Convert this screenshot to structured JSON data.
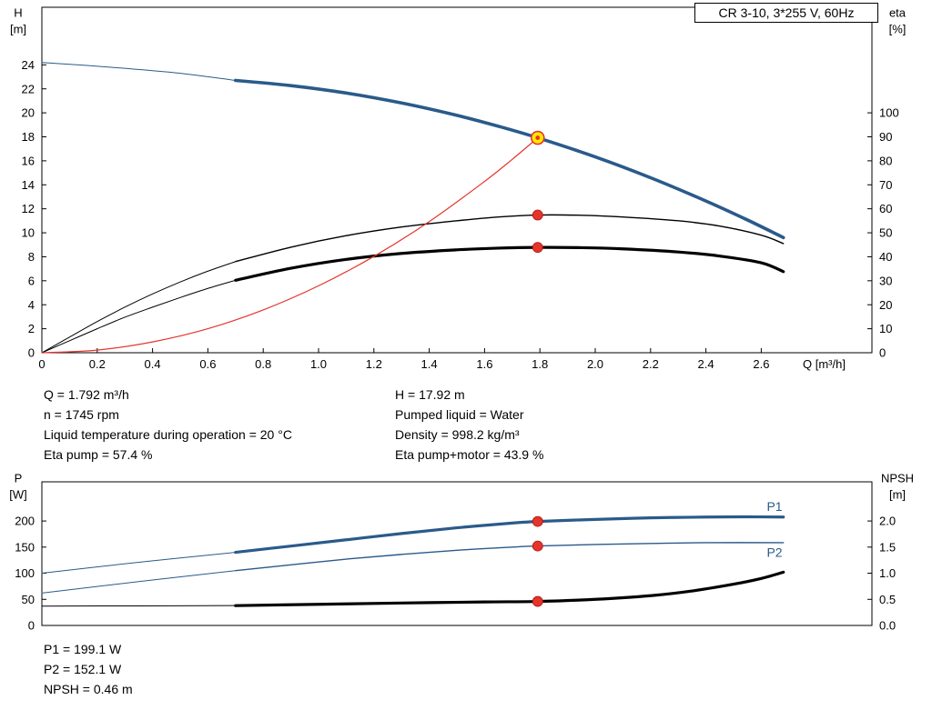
{
  "meta": {
    "title_box": "CR 3-10, 3*255 V, 60Hz"
  },
  "colors": {
    "curve_blue": "#2a5a8a",
    "curve_black": "#000000",
    "curve_red": "#e5352b",
    "duty_yellow": "#ffe800",
    "dot_red": "#e5352b",
    "axis": "#000000"
  },
  "info_top": {
    "left": [
      "Q = 1.792 m³/h",
      "n = 1745 rpm",
      "Liquid temperature during operation = 20 °C",
      "Eta pump = 57.4 %"
    ],
    "right": [
      "H = 17.92 m",
      "Pumped liquid = Water",
      "Density = 998.2 kg/m³",
      "Eta pump+motor = 43.9 %"
    ]
  },
  "info_bottom": [
    "P1 = 199.1 W",
    "P2 = 152.1 W",
    "NPSH = 0.46 m"
  ],
  "chart_data": [
    {
      "id": "head-efficiency",
      "type": "line",
      "grid": false,
      "legend": "none",
      "x_axis": {
        "min": 0,
        "max": 3.0,
        "label": "Q [m³/h]",
        "ticks": [
          "0",
          "0.2",
          "0.4",
          "0.6",
          "0.8",
          "1.0",
          "1.2",
          "1.4",
          "1.6",
          "1.8",
          "2.0",
          "2.2",
          "2.4",
          "2.6"
        ]
      },
      "y_left": {
        "min": 0,
        "max": 28.8,
        "title": [
          "H",
          "[m]"
        ],
        "ticks": [
          "0",
          "2",
          "4",
          "6",
          "8",
          "10",
          "12",
          "14",
          "16",
          "18",
          "20",
          "22",
          "24"
        ]
      },
      "y_right": {
        "min": 0,
        "max": 144,
        "title": [
          "eta",
          "[%]"
        ],
        "ticks": [
          "0",
          "10",
          "20",
          "30",
          "40",
          "50",
          "60",
          "70",
          "80",
          "90",
          "100"
        ]
      },
      "series": [
        {
          "name": "head-lead",
          "axis": "left",
          "color": "#2a5a8a",
          "width": 1,
          "points": [
            [
              0,
              24.2
            ],
            [
              0.25,
              23.8
            ],
            [
              0.5,
              23.3
            ],
            [
              0.7,
              22.7
            ]
          ]
        },
        {
          "name": "head",
          "axis": "left",
          "color": "#2a5a8a",
          "width": 3.6,
          "points": [
            [
              0.7,
              22.7
            ],
            [
              0.9,
              22.27
            ],
            [
              1.1,
              21.65
            ],
            [
              1.3,
              20.82
            ],
            [
              1.5,
              19.79
            ],
            [
              1.65,
              18.88
            ],
            [
              1.792,
              17.92
            ],
            [
              2.0,
              16.33
            ],
            [
              2.2,
              14.59
            ],
            [
              2.4,
              12.65
            ],
            [
              2.55,
              11.07
            ],
            [
              2.68,
              9.6
            ]
          ]
        },
        {
          "name": "eta-pump-lead",
          "axis": "right",
          "color": "#000000",
          "width": 1,
          "points": [
            [
              0,
              0
            ],
            [
              0.1,
              6.5
            ],
            [
              0.2,
              13
            ],
            [
              0.3,
              19
            ],
            [
              0.4,
              24.5
            ],
            [
              0.5,
              29.5
            ],
            [
              0.6,
              34
            ],
            [
              0.7,
              38
            ]
          ]
        },
        {
          "name": "eta-pump",
          "axis": "right",
          "color": "#000000",
          "width": 1.4,
          "points": [
            [
              0.7,
              38
            ],
            [
              0.9,
              44
            ],
            [
              1.1,
              48.8
            ],
            [
              1.3,
              52.4
            ],
            [
              1.5,
              55
            ],
            [
              1.65,
              56.6
            ],
            [
              1.792,
              57.4
            ],
            [
              1.95,
              57.3
            ],
            [
              2.1,
              56.6
            ],
            [
              2.3,
              55
            ],
            [
              2.45,
              52.8
            ],
            [
              2.6,
              49
            ],
            [
              2.68,
              45.5
            ]
          ]
        },
        {
          "name": "eta-pump-motor-lead",
          "axis": "right",
          "color": "#000000",
          "width": 1,
          "points": [
            [
              0,
              0
            ],
            [
              0.1,
              5
            ],
            [
              0.2,
              10
            ],
            [
              0.3,
              14.8
            ],
            [
              0.4,
              19
            ],
            [
              0.5,
              23
            ],
            [
              0.6,
              26.8
            ],
            [
              0.7,
              30.2
            ]
          ]
        },
        {
          "name": "eta-pump-motor",
          "axis": "right",
          "color": "#000000",
          "width": 3.2,
          "points": [
            [
              0.7,
              30.2
            ],
            [
              0.9,
              35.2
            ],
            [
              1.1,
              38.9
            ],
            [
              1.3,
              41.4
            ],
            [
              1.5,
              42.9
            ],
            [
              1.65,
              43.6
            ],
            [
              1.792,
              43.9
            ],
            [
              1.95,
              43.8
            ],
            [
              2.1,
              43.3
            ],
            [
              2.3,
              42
            ],
            [
              2.45,
              40.3
            ],
            [
              2.6,
              37.5
            ],
            [
              2.68,
              33.8
            ]
          ]
        },
        {
          "name": "system-curve",
          "axis": "left",
          "color": "#e5352b",
          "width": 1.2,
          "points": [
            [
              0,
              0
            ],
            [
              0.2,
              0.22
            ],
            [
              0.4,
              0.9
            ],
            [
              0.6,
              2.0
            ],
            [
              0.8,
              3.57
            ],
            [
              1.0,
              5.58
            ],
            [
              1.2,
              8.03
            ],
            [
              1.4,
              10.93
            ],
            [
              1.6,
              14.28
            ],
            [
              1.7,
              16.12
            ],
            [
              1.792,
              17.92
            ]
          ]
        }
      ],
      "markers": [
        {
          "type": "duty",
          "axis": "left",
          "x": 1.792,
          "y": 17.92
        },
        {
          "type": "dot",
          "axis": "right",
          "x": 1.792,
          "y": 57.4
        },
        {
          "type": "dot",
          "axis": "right",
          "x": 1.792,
          "y": 43.9
        }
      ],
      "annotations": []
    },
    {
      "id": "power-npsh",
      "type": "line",
      "grid": false,
      "legend": "none",
      "x_axis": {
        "min": 0,
        "max": 3.0,
        "label": "",
        "ticks": []
      },
      "y_left": {
        "min": 0,
        "max": 275,
        "title": [
          "P",
          "[W]"
        ],
        "ticks": [
          "0",
          "50",
          "100",
          "150",
          "200"
        ]
      },
      "y_right": {
        "min": 0,
        "max": 2.75,
        "title": [
          "NPSH",
          "[m]"
        ],
        "ticks": [
          "0.0",
          "0.5",
          "1.0",
          "1.5",
          "2.0"
        ]
      },
      "series": [
        {
          "name": "p1-lead",
          "axis": "left",
          "color": "#2a5a8a",
          "width": 1,
          "points": [
            [
              0,
              100
            ],
            [
              0.35,
              121
            ],
            [
              0.7,
              140
            ]
          ]
        },
        {
          "name": "p1",
          "axis": "left",
          "color": "#2a5a8a",
          "width": 3.2,
          "points": [
            [
              0.7,
              140
            ],
            [
              0.9,
              152
            ],
            [
              1.1,
              164
            ],
            [
              1.3,
              176
            ],
            [
              1.5,
              187
            ],
            [
              1.7,
              196
            ],
            [
              1.792,
              199.1
            ],
            [
              2.0,
              203
            ],
            [
              2.2,
              206
            ],
            [
              2.4,
              207.5
            ],
            [
              2.55,
              208
            ],
            [
              2.68,
              207.5
            ]
          ]
        },
        {
          "name": "p2-lead",
          "axis": "left",
          "color": "#2a5a8a",
          "width": 1,
          "points": [
            [
              0,
              62
            ],
            [
              0.35,
              84
            ],
            [
              0.7,
              105
            ]
          ]
        },
        {
          "name": "p2",
          "axis": "left",
          "color": "#2a5a8a",
          "width": 1.4,
          "points": [
            [
              0.7,
              105
            ],
            [
              0.9,
              116
            ],
            [
              1.1,
              127
            ],
            [
              1.3,
              136
            ],
            [
              1.5,
              144
            ],
            [
              1.7,
              150
            ],
            [
              1.792,
              152.1
            ],
            [
              2.0,
              155
            ],
            [
              2.2,
              157
            ],
            [
              2.4,
              158.5
            ],
            [
              2.68,
              158.5
            ]
          ]
        },
        {
          "name": "npsh-lead",
          "axis": "right",
          "color": "#000000",
          "width": 1,
          "points": [
            [
              0,
              0.37
            ],
            [
              0.35,
              0.375
            ],
            [
              0.7,
              0.38
            ]
          ]
        },
        {
          "name": "npsh",
          "axis": "right",
          "color": "#000000",
          "width": 3.2,
          "points": [
            [
              0.7,
              0.38
            ],
            [
              1.0,
              0.405
            ],
            [
              1.3,
              0.43
            ],
            [
              1.6,
              0.45
            ],
            [
              1.792,
              0.46
            ],
            [
              2.0,
              0.5
            ],
            [
              2.2,
              0.57
            ],
            [
              2.35,
              0.66
            ],
            [
              2.5,
              0.79
            ],
            [
              2.6,
              0.9
            ],
            [
              2.68,
              1.02
            ]
          ]
        }
      ],
      "markers": [
        {
          "type": "dot",
          "axis": "left",
          "x": 1.792,
          "y": 199.1
        },
        {
          "type": "dot",
          "axis": "left",
          "x": 1.792,
          "y": 152.1
        },
        {
          "type": "dot",
          "axis": "right",
          "x": 1.792,
          "y": 0.46
        }
      ],
      "annotations": [
        {
          "text": "P1",
          "axis": "left",
          "x": 2.62,
          "y": 228,
          "color": "#2a5a8a"
        },
        {
          "text": "P2",
          "axis": "left",
          "x": 2.62,
          "y": 140,
          "color": "#2a5a8a"
        }
      ]
    }
  ]
}
